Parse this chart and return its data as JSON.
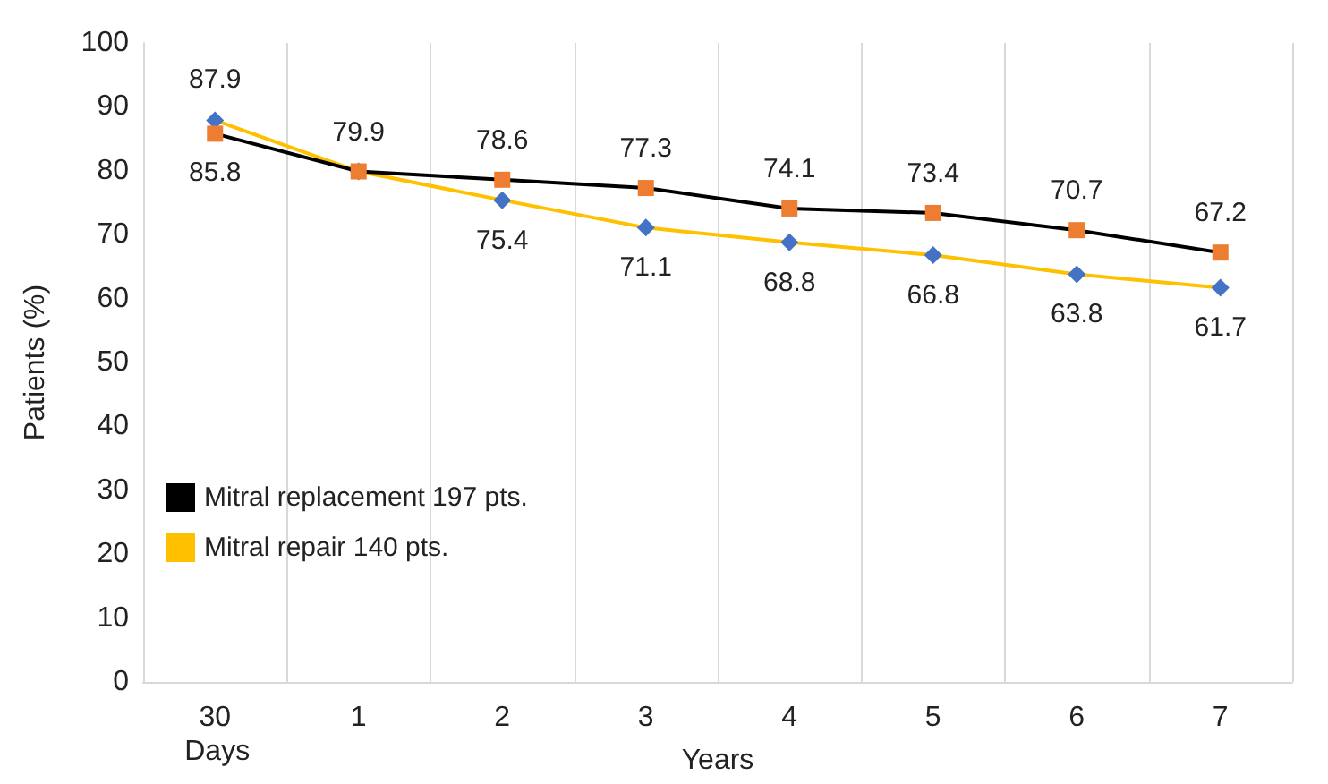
{
  "chart_data": {
    "type": "line",
    "ylabel": "Patients (%)",
    "xlabel": "Years",
    "annotations": [
      "Days"
    ],
    "categories": [
      "30",
      "1",
      "2",
      "3",
      "4",
      "5",
      "6",
      "7"
    ],
    "series": [
      {
        "name": "Mitral replacement 197 pts.",
        "color": "#000000",
        "marker": "square",
        "colors": [
          "#ed7d31",
          "#ed7d31",
          "#ed7d31",
          "#ed7d31",
          "#ed7d31",
          "#ed7d31",
          "#ed7d31",
          "#ed7d31"
        ],
        "values": [
          85.8,
          79.9,
          78.6,
          77.3,
          74.1,
          73.4,
          70.7,
          67.2
        ],
        "value_labels": [
          "85.8",
          "79.9",
          "78.6",
          "77.3",
          "74.1",
          "73.4",
          "70.7",
          "67.2"
        ]
      },
      {
        "name": "Mitral repair 140 pts.",
        "color": "#ffc000",
        "marker": "diamond",
        "colors": [
          "#4472c4",
          "#4472c4",
          "#4472c4",
          "#4472c4",
          "#4472c4",
          "#4472c4",
          "#4472c4",
          "#4472c4"
        ],
        "values": [
          87.9,
          79.9,
          75.4,
          71.1,
          68.8,
          66.8,
          63.8,
          61.7
        ],
        "value_labels": [
          "87.9",
          null,
          "75.4",
          "71.1",
          "68.8",
          "66.8",
          "63.8",
          "61.7"
        ]
      }
    ],
    "ylim": [
      0,
      100
    ],
    "yticks": [
      0,
      10,
      20,
      30,
      40,
      50,
      60,
      70,
      80,
      90,
      100
    ],
    "grid": "x",
    "legend": "bottom left"
  }
}
